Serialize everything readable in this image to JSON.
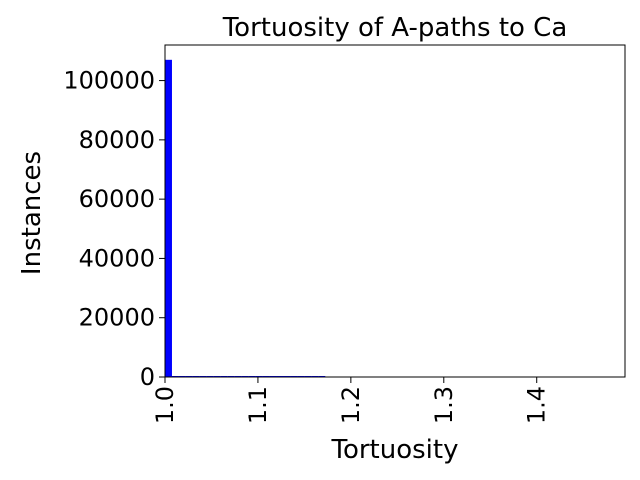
{
  "chart_data": {
    "type": "bar",
    "title": "Tortuosity of A-paths to Ca",
    "xlabel": "Tortuosity",
    "ylabel": "Instances",
    "xlim": [
      1.0,
      1.495
    ],
    "ylim": [
      0,
      112000
    ],
    "x_ticks": [
      1.0,
      1.1,
      1.2,
      1.3,
      1.4
    ],
    "x_tick_labels": [
      "1.0",
      "1.1",
      "1.2",
      "1.3",
      "1.4"
    ],
    "y_ticks": [
      0,
      20000,
      40000,
      60000,
      80000,
      100000
    ],
    "y_tick_labels": [
      "0",
      "20000",
      "40000",
      "60000",
      "80000",
      "100000"
    ],
    "bin_width": 0.0075,
    "bins": [
      {
        "x": 1.0,
        "value": 107000
      },
      {
        "x": 1.0075,
        "value": 300
      },
      {
        "x": 1.015,
        "value": 250
      },
      {
        "x": 1.0225,
        "value": 220
      },
      {
        "x": 1.03,
        "value": 200
      },
      {
        "x": 1.0375,
        "value": 180
      },
      {
        "x": 1.045,
        "value": 170
      },
      {
        "x": 1.0525,
        "value": 160
      },
      {
        "x": 1.06,
        "value": 150
      },
      {
        "x": 1.0675,
        "value": 140
      },
      {
        "x": 1.075,
        "value": 130
      },
      {
        "x": 1.0825,
        "value": 120
      },
      {
        "x": 1.09,
        "value": 110
      },
      {
        "x": 1.0975,
        "value": 100
      },
      {
        "x": 1.105,
        "value": 90
      },
      {
        "x": 1.1125,
        "value": 80
      },
      {
        "x": 1.12,
        "value": 70
      },
      {
        "x": 1.1275,
        "value": 60
      },
      {
        "x": 1.135,
        "value": 50
      },
      {
        "x": 1.1425,
        "value": 40
      },
      {
        "x": 1.15,
        "value": 30
      },
      {
        "x": 1.1575,
        "value": 25
      },
      {
        "x": 1.165,
        "value": 15
      }
    ],
    "colors": {
      "bar": "#0000ff",
      "axis": "#000000",
      "background": "#ffffff"
    },
    "grid": false,
    "legend": "none"
  }
}
